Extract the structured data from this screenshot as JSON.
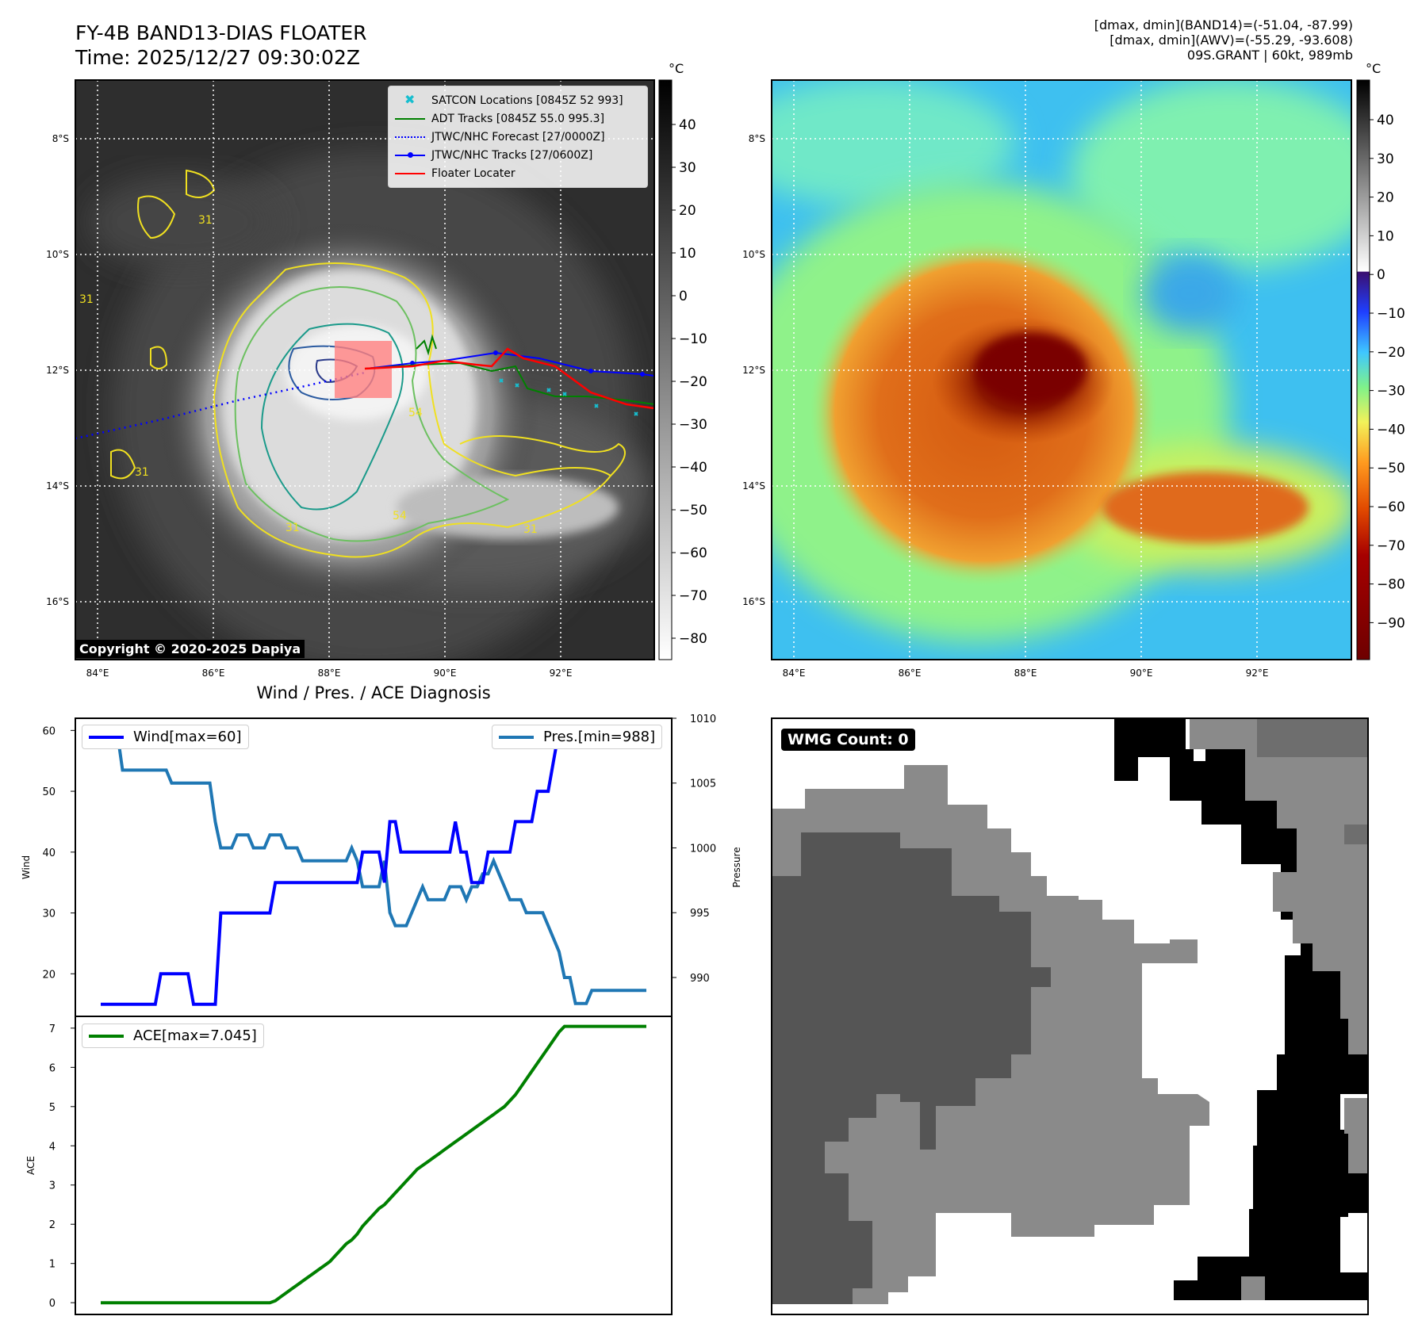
{
  "header": {
    "title_line1": "FY-4B BAND13-DIAS FLOATER",
    "title_line2": "Time: 2025/12/27 09:30:02Z",
    "info_line1": "[dmax, dmin](BAND14)=(-51.04, -87.99)",
    "info_line2": "[dmax, dmin](AWV)=(-55.29, -93.608)",
    "info_line3": "09S.GRANT | 60kt, 989mb"
  },
  "copyright": "Copyright © 2020-2025 Dapiya",
  "maps": {
    "lat_labels": [
      "8°S",
      "10°S",
      "12°S",
      "14°S",
      "16°S"
    ],
    "lon_labels": [
      "84°E",
      "86°E",
      "88°E",
      "90°E",
      "92°E"
    ],
    "colorbar_unit": "°C",
    "left_colorbar_ticks": [
      "40",
      "30",
      "20",
      "10",
      "0",
      "−10",
      "−20",
      "−30",
      "−40",
      "−50",
      "−60",
      "−70",
      "−80"
    ],
    "right_colorbar_ticks": [
      "40",
      "30",
      "20",
      "10",
      "0",
      "−10",
      "−20",
      "−30",
      "−40",
      "−50",
      "−60",
      "−70",
      "−80",
      "−90"
    ],
    "contour_labels": [
      "31",
      "31",
      "31",
      "31",
      "54",
      "54",
      "31"
    ],
    "legend": [
      {
        "label": "SATCON Locations [0845Z 52 993]",
        "color": "#17becf",
        "style": "x"
      },
      {
        "label": "ADT Tracks [0845Z 55.0 995.3]",
        "color": "#008000",
        "style": "line"
      },
      {
        "label": "JTWC/NHC Forecast [27/0000Z]",
        "color": "#0000ff",
        "style": "dotted"
      },
      {
        "label": "JTWC/NHC Tracks [27/0600Z]",
        "color": "#0000ff",
        "style": "line-dot"
      },
      {
        "label": "Floater Locater",
        "color": "#ff0000",
        "style": "line"
      }
    ]
  },
  "chart_data": [
    {
      "type": "line",
      "title": "Wind / Pres. / ACE Diagnosis",
      "ylabel": "Wind",
      "ylabel2": "Pressure",
      "ylim": [
        13,
        62
      ],
      "ylim2": [
        987,
        1010
      ],
      "yticks": [
        "20",
        "30",
        "40",
        "50",
        "60"
      ],
      "yticks2": [
        "990",
        "995",
        "1000",
        "1005",
        "1010"
      ],
      "x": [
        0,
        1,
        2,
        3,
        4,
        5,
        6,
        7,
        8,
        9,
        10,
        11,
        12,
        13,
        14,
        15,
        16,
        17,
        18,
        19,
        20,
        21,
        22,
        23,
        24,
        25,
        26,
        27,
        28,
        29,
        30,
        31,
        32,
        33,
        34,
        35,
        36,
        37,
        38,
        39,
        40,
        41,
        42,
        43,
        44,
        45,
        46,
        47,
        48,
        49,
        50,
        51,
        52,
        53,
        54,
        55,
        56,
        57,
        58,
        59,
        60,
        61,
        62,
        63,
        64,
        65,
        66,
        67,
        68,
        69,
        70,
        71,
        72,
        73,
        74,
        75,
        76,
        77,
        78,
        79,
        80,
        81,
        82,
        83,
        84,
        85,
        86,
        87,
        88,
        89,
        90,
        91,
        92,
        93,
        94,
        95,
        96,
        97,
        98,
        99,
        100
      ],
      "series": [
        {
          "name": "Wind[max=60]",
          "color": "#0000ff",
          "values": [
            15,
            15,
            15,
            15,
            15,
            15,
            15,
            15,
            15,
            15,
            15,
            20,
            20,
            20,
            20,
            20,
            20,
            15,
            15,
            15,
            15,
            15,
            30,
            30,
            30,
            30,
            30,
            30,
            30,
            30,
            30,
            30,
            35,
            35,
            35,
            35,
            35,
            35,
            35,
            35,
            35,
            35,
            35,
            35,
            35,
            35,
            35,
            35,
            40,
            40,
            40,
            40,
            35,
            45,
            45,
            40,
            40,
            40,
            40,
            40,
            40,
            40,
            40,
            40,
            40,
            45,
            40,
            40,
            35,
            35,
            35,
            40,
            40,
            40,
            40,
            40,
            45,
            45,
            45,
            45,
            50,
            50,
            50,
            55,
            60,
            60,
            60,
            60,
            60,
            60,
            60,
            60,
            60,
            60,
            60,
            60,
            60,
            60,
            60,
            60,
            60
          ]
        },
        {
          "name": "Pres.[min=988]",
          "color": "#1f77b4",
          "axis": "right",
          "values": [
            1009,
            1009,
            1009,
            1009,
            1006,
            1006,
            1006,
            1006,
            1006,
            1006,
            1006,
            1006,
            1006,
            1005,
            1005,
            1005,
            1005,
            1005,
            1005,
            1005,
            1005,
            1002,
            1000,
            1000,
            1000,
            1001,
            1001,
            1001,
            1000,
            1000,
            1000,
            1001,
            1001,
            1001,
            1000,
            1000,
            1000,
            999,
            999,
            999,
            999,
            999,
            999,
            999,
            999,
            999,
            1000,
            999,
            997,
            997,
            997,
            997,
            999,
            995,
            994,
            994,
            994,
            995,
            996,
            997,
            996,
            996,
            996,
            996,
            997,
            997,
            997,
            996,
            997,
            997,
            998,
            998,
            999,
            998,
            997,
            996,
            996,
            996,
            995,
            995,
            995,
            995,
            994,
            993,
            992,
            990,
            990,
            988,
            988,
            988,
            989,
            989,
            989,
            989,
            989,
            989,
            989,
            989,
            989,
            989,
            989
          ]
        }
      ]
    },
    {
      "type": "line",
      "ylabel": "ACE",
      "ylim": [
        -0.3,
        7.3
      ],
      "yticks": [
        "0",
        "1",
        "2",
        "3",
        "4",
        "5",
        "6",
        "7"
      ],
      "series": [
        {
          "name": "ACE[max=7.045]",
          "color": "#008000",
          "values": [
            0,
            0,
            0,
            0,
            0,
            0,
            0,
            0,
            0,
            0,
            0,
            0,
            0,
            0,
            0,
            0,
            0,
            0,
            0,
            0,
            0,
            0,
            0,
            0,
            0,
            0,
            0,
            0,
            0,
            0,
            0,
            0,
            0.05,
            0.15,
            0.25,
            0.35,
            0.45,
            0.55,
            0.65,
            0.75,
            0.85,
            0.95,
            1.05,
            1.2,
            1.35,
            1.5,
            1.6,
            1.75,
            1.95,
            2.1,
            2.25,
            2.4,
            2.5,
            2.65,
            2.8,
            2.95,
            3.1,
            3.25,
            3.4,
            3.5,
            3.6,
            3.7,
            3.8,
            3.9,
            4.0,
            4.1,
            4.2,
            4.3,
            4.4,
            4.5,
            4.6,
            4.7,
            4.8,
            4.9,
            5.0,
            5.15,
            5.3,
            5.5,
            5.7,
            5.9,
            6.1,
            6.3,
            6.5,
            6.7,
            6.9,
            7.045,
            7.045,
            7.045,
            7.045,
            7.045,
            7.045,
            7.045,
            7.045,
            7.045,
            7.045,
            7.045,
            7.045,
            7.045,
            7.045,
            7.045,
            7.045
          ]
        }
      ]
    }
  ],
  "wmg": {
    "label": "WMG Count: 0"
  }
}
